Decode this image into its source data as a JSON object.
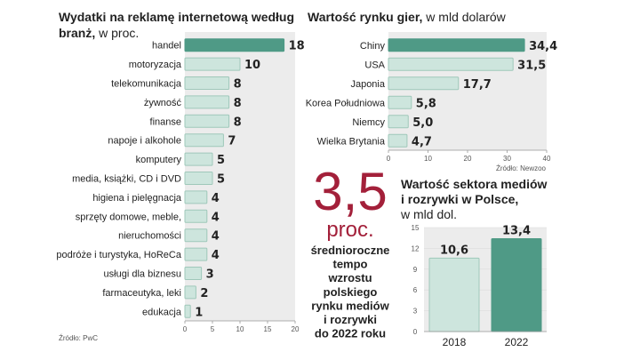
{
  "colors": {
    "highlight": "#4f9a86",
    "bar": "#cde5dd",
    "bar_stroke": "#9fc8ba",
    "track": "#ececec",
    "accent_red": "#a3203a"
  },
  "callout": {
    "value": "3,5",
    "unit": "proc.",
    "lines": [
      "średnioroczne",
      "tempo",
      "wzrostu",
      "polskiego",
      "rynku mediów",
      "i rozrywki",
      "do 2022 roku"
    ]
  },
  "chart_data": [
    {
      "type": "bar",
      "orientation": "horizontal",
      "title_bold": "Wydatki na reklamę internetową według",
      "title_bold2": "branż,",
      "title_rest": " w proc.",
      "categories": [
        "handel",
        "motoryzacja",
        "telekomunikacja",
        "żywność",
        "finanse",
        "napoje i alkohole",
        "komputery",
        "media, książki, CD i DVD",
        "higiena i pielęgnacja",
        "sprzęty domowe, meble,",
        "nieruchomości",
        "podróże i turystyka, HoReCa",
        "usługi dla biznesu",
        "farmaceutyka, leki",
        "edukacja"
      ],
      "values": [
        18,
        10,
        8,
        8,
        8,
        7,
        5,
        5,
        4,
        4,
        4,
        4,
        3,
        2,
        1
      ],
      "highlight_index": 0,
      "xlim": [
        0,
        20
      ],
      "xticks": [
        "0",
        "5",
        "10",
        "15",
        "20"
      ],
      "source": "Źródło: PwC"
    },
    {
      "type": "bar",
      "orientation": "horizontal",
      "title_bold": "Wartość rynku gier,",
      "title_rest": " w mld dolarów",
      "categories": [
        "Chiny",
        "USA",
        "Japonia",
        "Korea Południowa",
        "Niemcy",
        "Wielka Brytania"
      ],
      "values": [
        34.4,
        31.5,
        17.7,
        5.8,
        5.0,
        4.7
      ],
      "labels": [
        "34,4",
        "31,5",
        "17,7",
        "5,8",
        "5,0",
        "4,7"
      ],
      "highlight_index": 0,
      "xlim": [
        0,
        40
      ],
      "xticks": [
        "0",
        "10",
        "20",
        "30",
        "40"
      ],
      "source": "Źródło: Newzoo"
    },
    {
      "type": "bar",
      "orientation": "vertical",
      "title_line1": "Wartość sektora mediów",
      "title_line2": "i rozrywki w Polsce,",
      "title_line3": "w mld dol.",
      "categories": [
        "2018",
        "2022"
      ],
      "values": [
        10.6,
        13.4
      ],
      "labels": [
        "10,6",
        "13,4"
      ],
      "highlight_index": 1,
      "ylim": [
        0,
        15
      ],
      "yticks": [
        "0",
        "3",
        "6",
        "9",
        "12",
        "15"
      ]
    }
  ]
}
